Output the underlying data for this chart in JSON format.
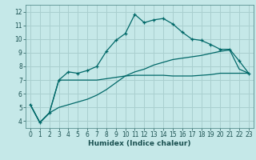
{
  "xlabel": "Humidex (Indice chaleur)",
  "ylabel": "",
  "background_color": "#c5e8e8",
  "grid_color": "#aacfcf",
  "line_color": "#006868",
  "xlim": [
    -0.5,
    23.5
  ],
  "ylim": [
    3.5,
    12.5
  ],
  "xticks": [
    0,
    1,
    2,
    3,
    4,
    5,
    6,
    7,
    8,
    9,
    10,
    11,
    12,
    13,
    14,
    15,
    16,
    17,
    18,
    19,
    20,
    21,
    22,
    23
  ],
  "yticks": [
    4,
    5,
    6,
    7,
    8,
    9,
    10,
    11,
    12
  ],
  "line1_x": [
    0,
    1,
    2,
    3,
    4,
    5,
    6,
    7,
    8,
    9,
    10,
    11,
    12,
    13,
    14,
    15,
    16,
    17,
    18,
    19,
    20,
    21,
    22,
    23
  ],
  "line1_y": [
    5.2,
    3.9,
    4.6,
    7.0,
    7.6,
    7.5,
    7.7,
    8.0,
    9.1,
    9.9,
    10.4,
    11.8,
    11.2,
    11.4,
    11.5,
    11.1,
    10.5,
    10.0,
    9.9,
    9.6,
    9.25,
    9.25,
    8.4,
    7.5
  ],
  "line2_x": [
    0,
    1,
    2,
    3,
    4,
    5,
    6,
    7,
    8,
    9,
    10,
    11,
    12,
    13,
    14,
    15,
    16,
    17,
    18,
    19,
    20,
    21,
    22,
    23
  ],
  "line2_y": [
    5.2,
    3.9,
    4.6,
    7.0,
    7.0,
    7.0,
    7.0,
    7.0,
    7.1,
    7.2,
    7.3,
    7.35,
    7.35,
    7.35,
    7.35,
    7.3,
    7.3,
    7.3,
    7.35,
    7.4,
    7.5,
    7.5,
    7.5,
    7.5
  ],
  "line3_x": [
    0,
    1,
    2,
    3,
    4,
    5,
    6,
    7,
    8,
    9,
    10,
    11,
    12,
    13,
    14,
    15,
    16,
    17,
    18,
    19,
    20,
    21,
    22,
    23
  ],
  "line3_y": [
    5.2,
    3.9,
    4.6,
    5.0,
    5.2,
    5.4,
    5.6,
    5.9,
    6.3,
    6.8,
    7.3,
    7.6,
    7.8,
    8.1,
    8.3,
    8.5,
    8.6,
    8.7,
    8.8,
    8.95,
    9.1,
    9.2,
    7.8,
    7.5
  ]
}
